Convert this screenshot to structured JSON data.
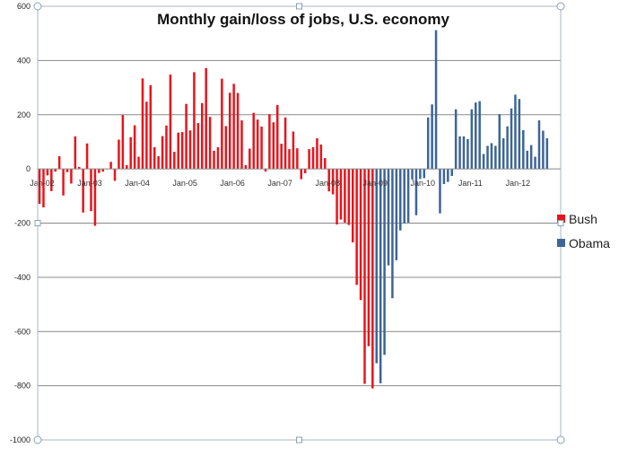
{
  "chart_data": {
    "type": "bar",
    "title": "Monthly gain/loss of jobs, U.S. economy",
    "xlabel": "",
    "ylabel": "",
    "ylim": [
      -1000,
      600
    ],
    "yticks": [
      600,
      400,
      200,
      0,
      -200,
      -400,
      -600,
      -800,
      -1000
    ],
    "xtick_labels": [
      "Jan-02",
      "Jan-03",
      "Jan-04",
      "Jan-05",
      "Jan-06",
      "Jan-07",
      "Jan-08",
      "Jan-09",
      "Jan-10",
      "Jan-11",
      "Jan-12"
    ],
    "grid": true,
    "legend_position": "right",
    "start_month": "Jan-02",
    "series": [
      {
        "name": "Bush",
        "color": "#e8141b",
        "values": [
          -129,
          -142,
          -24,
          -82,
          -10,
          47,
          -98,
          -12,
          -54,
          120,
          7,
          -161,
          94,
          -156,
          -210,
          -15,
          -10,
          0,
          26,
          -44,
          108,
          199,
          14,
          117,
          161,
          45,
          334,
          248,
          309,
          80,
          47,
          121,
          160,
          348,
          63,
          134,
          136,
          240,
          142,
          357,
          169,
          243,
          372,
          192,
          67,
          80,
          333,
          158,
          281,
          314,
          280,
          179,
          14,
          75,
          207,
          182,
          156,
          -10,
          202,
          172,
          236,
          93,
          190,
          73,
          138,
          76,
          -38,
          -16,
          73,
          80,
          113,
          90,
          40,
          -83,
          -94,
          -205,
          -187,
          -198,
          -207,
          -271,
          -428,
          -484,
          -793,
          -654,
          -810
        ]
      },
      {
        "name": "Obama",
        "color": "#3d6597",
        "values": [
          -717,
          -791,
          -686,
          -356,
          -477,
          -337,
          -227,
          -201,
          -198,
          -39,
          -171,
          -37,
          -34,
          190,
          238,
          512,
          -164,
          -56,
          -48,
          -26,
          220,
          120,
          120,
          110,
          220,
          245,
          250,
          55,
          85,
          95,
          85,
          202,
          113,
          157,
          223,
          274,
          258,
          143,
          67,
          88,
          45,
          179,
          141,
          113
        ]
      }
    ]
  }
}
